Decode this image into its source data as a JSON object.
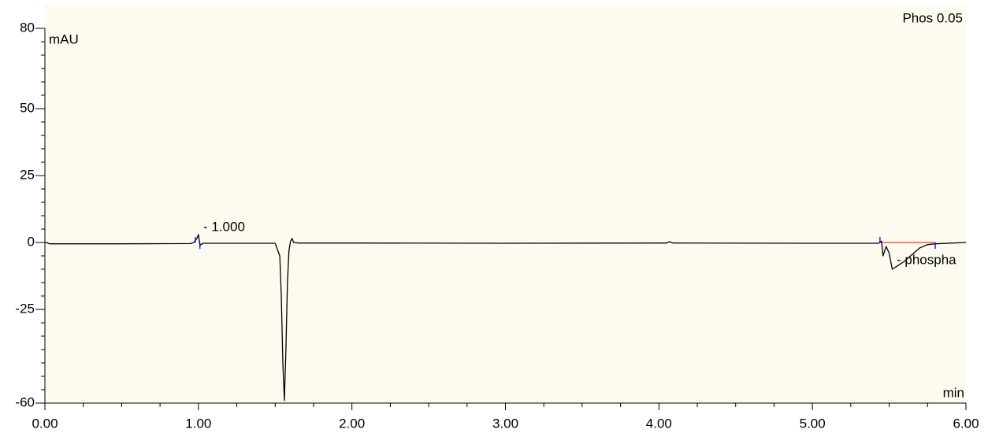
{
  "chart_data": {
    "type": "line",
    "title": "Phos 0.05",
    "y_label": "mAU",
    "x_label": "min",
    "xlim": [
      0,
      6
    ],
    "ylim": [
      -60,
      80
    ],
    "xticks": [
      {
        "value": 0,
        "label": "0.00"
      },
      {
        "value": 1,
        "label": "1.00"
      },
      {
        "value": 2,
        "label": "2.00"
      },
      {
        "value": 3,
        "label": "3.00"
      },
      {
        "value": 4,
        "label": "4.00"
      },
      {
        "value": 5,
        "label": "5.00"
      },
      {
        "value": 6,
        "label": "6.00"
      }
    ],
    "xminorticks": [
      0.25,
      0.5,
      0.75,
      1.25,
      1.5,
      1.75,
      2.25,
      2.5,
      2.75,
      3.25,
      3.5,
      3.75,
      4.25,
      4.5,
      4.75,
      5.25,
      5.5,
      5.75
    ],
    "yticks": [
      80,
      50,
      25,
      0,
      -25,
      -60
    ],
    "yminorticks": [
      75,
      70,
      65,
      60,
      55,
      45,
      40,
      35,
      30,
      20,
      15,
      10,
      5,
      -5,
      -10,
      -15,
      -20,
      -30,
      -35,
      -40,
      -45,
      -50,
      -55
    ],
    "x": [
      0,
      0.01,
      0.03,
      0.5,
      0.95,
      0.97,
      0.99,
      1.0,
      1.01,
      1.03,
      1.5,
      1.53,
      1.54,
      1.55,
      1.56,
      1.57,
      1.58,
      1.59,
      1.6,
      1.61,
      1.62,
      1.65,
      2.0,
      3.0,
      4.05,
      4.07,
      4.09,
      5.0,
      5.43,
      5.45,
      5.46,
      5.48,
      5.5,
      5.52,
      5.6,
      5.7,
      5.75,
      5.8,
      6.0
    ],
    "series": [
      {
        "color": "#000000",
        "values": [
          0,
          0,
          -0.5,
          -0.5,
          -0.4,
          0,
          1.5,
          3,
          -1,
          -0.3,
          -0.3,
          -5,
          -20,
          -45,
          -59,
          -40,
          -15,
          -3,
          0.5,
          1.5,
          0,
          -0.2,
          -0.2,
          -0.3,
          -0.2,
          0.3,
          -0.2,
          -0.3,
          -0.3,
          0.5,
          -5,
          -1.5,
          -4,
          -10,
          -7,
          -2,
          -0.8,
          -0.5,
          0
        ]
      }
    ],
    "baseline": {
      "color": "#ff0000",
      "x": [
        5.44,
        5.8
      ],
      "y": [
        0,
        0
      ]
    },
    "integration_marks": {
      "color": "#0000ff",
      "x": [
        0.98,
        1.01,
        5.44,
        5.8
      ]
    },
    "annotations": [
      "- 1.000",
      "- phospha"
    ],
    "background": "#fdfbf0"
  }
}
